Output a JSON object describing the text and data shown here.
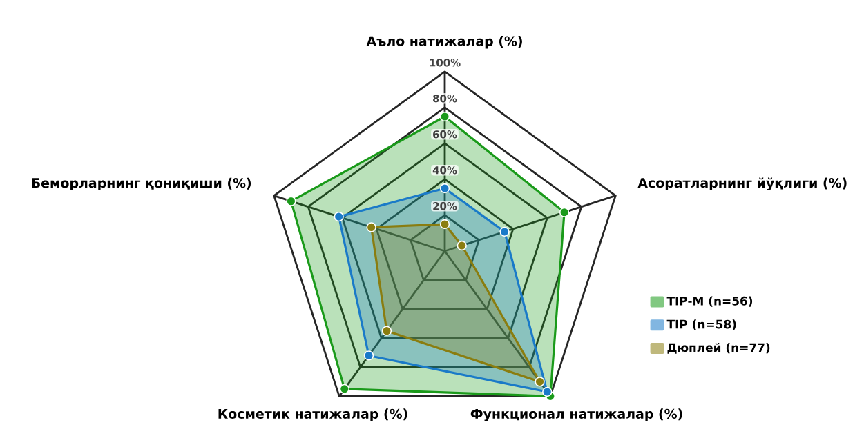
{
  "chart_data": {
    "type": "radar",
    "categories": [
      "Аъло натижалар (%)",
      "Асоратларнинг йўқлиги (%)",
      "Функционал натижалар (%)",
      "Косметик натижалар (%)",
      "Беморларнинг қониқиши (%)"
    ],
    "series": [
      {
        "name": "TIP-M (n=56)",
        "color": "#1a9a1a",
        "values": [
          75,
          70,
          100,
          95,
          90
        ]
      },
      {
        "name": "TIP (n=58)",
        "color": "#1a7ac8",
        "values": [
          35,
          35,
          97,
          72,
          62
        ]
      },
      {
        "name": "Дюплей (n=77)",
        "color": "#8a7d10",
        "values": [
          15,
          10,
          90,
          55,
          43
        ]
      }
    ],
    "ylim": [
      0,
      100
    ],
    "yticks": [
      {
        "value": 20,
        "label": "20%"
      },
      {
        "value": 40,
        "label": "40%"
      },
      {
        "value": 60,
        "label": "60%"
      },
      {
        "value": 80,
        "label": "80%"
      },
      {
        "value": 100,
        "label": "100%"
      }
    ],
    "grid": true,
    "legend": "right",
    "marker": "circle"
  }
}
